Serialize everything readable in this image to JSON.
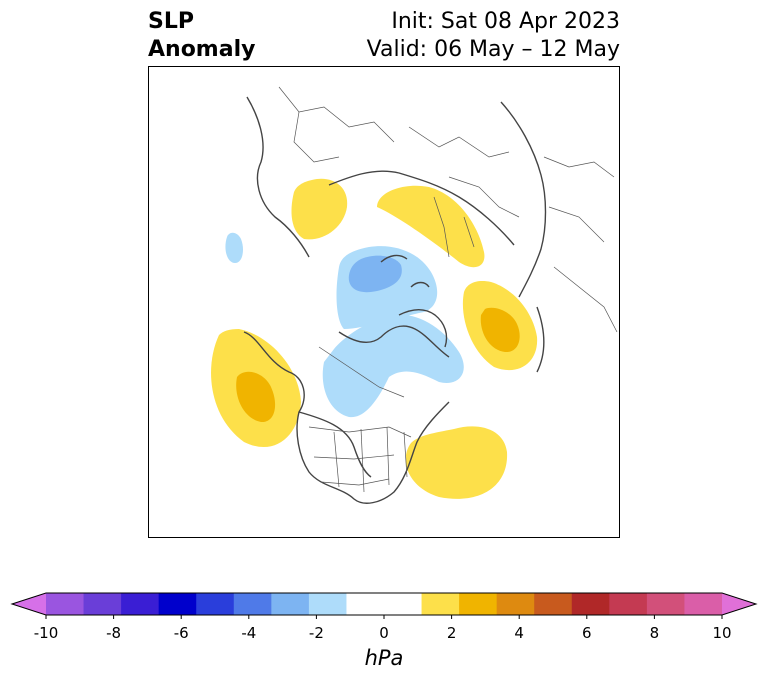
{
  "header": {
    "title_line1": "SLP",
    "title_line2": "Anomaly",
    "init_label": "Init: Sat 08 Apr 2023",
    "valid_label": "Valid: 06 May – 12 May"
  },
  "map": {
    "projection": "polar stereographic (North Pole)",
    "features": [
      "coastlines",
      "country borders",
      "US state borders"
    ],
    "anomaly_regions": [
      {
        "name": "north-pacific-high",
        "level": 2
      },
      {
        "name": "north-pacific-high-core",
        "level": 3
      },
      {
        "name": "east-us-atlantic-high",
        "level": 2
      },
      {
        "name": "western-europe-high",
        "level": 2
      },
      {
        "name": "scandinavia-russia-high",
        "level": 2
      },
      {
        "name": "east-asia-high",
        "level": 2
      },
      {
        "name": "east-asia-high-core",
        "level": 3
      },
      {
        "name": "arctic-low",
        "level": -2
      },
      {
        "name": "arctic-low-core",
        "level": -3
      },
      {
        "name": "canada-greenland-low",
        "level": -2
      },
      {
        "name": "atlantic-small-low",
        "level": -2
      }
    ]
  },
  "colorbar": {
    "label": "hPa",
    "tick_labels": [
      "-10",
      "-8",
      "-6",
      "-4",
      "-2",
      "0",
      "2",
      "4",
      "6",
      "8",
      "10"
    ],
    "ticks": [
      -10,
      -8,
      -6,
      -4,
      -2,
      0,
      2,
      4,
      6,
      8,
      10
    ],
    "extend": "both",
    "colors": [
      "#d670e8",
      "#9a55e0",
      "#6a3ed8",
      "#3a1ed4",
      "#0000cc",
      "#2a3edb",
      "#4f7ae8",
      "#7db4f2",
      "#aedcfa",
      "#ffffff",
      "#ffffff",
      "#fde04a",
      "#f0b400",
      "#de8a10",
      "#c85a1e",
      "#b02828",
      "#c43a52",
      "#d2507a",
      "#da5ea8",
      "#e070d8"
    ]
  }
}
